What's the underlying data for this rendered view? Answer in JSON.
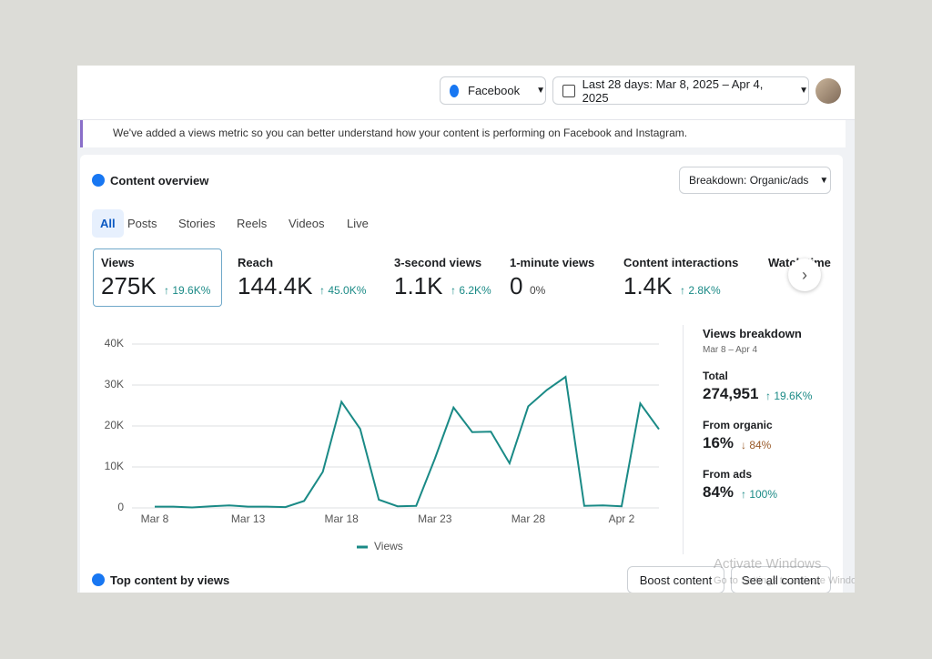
{
  "header": {
    "platform": "Facebook",
    "date_range": "Last 28 days: Mar 8, 2025 – Apr 4, 2025"
  },
  "notice": "We've added a views metric so you can better understand how your content is performing on Facebook and Instagram.",
  "overview": {
    "title": "Content overview",
    "breakdown": "Breakdown: Organic/ads",
    "tabs": [
      "All",
      "Posts",
      "Stories",
      "Reels",
      "Videos",
      "Live"
    ],
    "metrics": [
      {
        "label": "Views",
        "value": "275K",
        "change": "↑ 19.6K%"
      },
      {
        "label": "Reach",
        "value": "144.4K",
        "change": "↑ 45.0K%"
      },
      {
        "label": "3-second views",
        "value": "1.1K",
        "change": "↑ 6.2K%"
      },
      {
        "label": "1-minute views",
        "value": "0",
        "change": "0%"
      },
      {
        "label": "Content interactions",
        "value": "1.4K",
        "change": "↑ 2.8K%"
      },
      {
        "label": "Watch time"
      }
    ]
  },
  "chart_data": {
    "type": "line",
    "categories": [
      "Mar 8",
      null,
      null,
      null,
      null,
      "Mar 13",
      null,
      null,
      null,
      null,
      "Mar 18",
      null,
      null,
      null,
      null,
      "Mar 23",
      null,
      null,
      null,
      null,
      "Mar 28",
      null,
      null,
      null,
      null,
      "Apr 2",
      null,
      null
    ],
    "series": [
      {
        "name": "Views",
        "color": "#1a8a86",
        "values": [
          300,
          300,
          100,
          400,
          600,
          300,
          300,
          200,
          1700,
          8800,
          25900,
          19300,
          2000,
          400,
          500,
          12000,
          24500,
          18500,
          18600,
          10900,
          24800,
          28800,
          32000,
          500,
          600,
          400,
          25500,
          19200
        ]
      }
    ],
    "ylim": [
      0,
      40000
    ],
    "yticks": [
      0,
      {
        "value": 10000,
        "label": "10K"
      },
      {
        "value": 20000,
        "label": "20K"
      },
      {
        "value": 30000,
        "label": "30K"
      },
      {
        "value": 40000,
        "label": "40K"
      }
    ],
    "grid": true
  },
  "breakdown_panel": {
    "title": "Views breakdown",
    "period": "Mar 8 – Apr 4",
    "items": [
      {
        "label": "Total",
        "value": "274,951",
        "change": "↑ 19.6K%"
      },
      {
        "label": "From organic",
        "value": "16%",
        "change": "↓ 84%"
      },
      {
        "label": "From ads",
        "value": "84%",
        "change": "↑ 100%"
      }
    ]
  },
  "footer": {
    "title": "Top content by views",
    "buttons": [
      "Boost content",
      "See all content"
    ]
  },
  "watermark": {
    "title": "Activate Windows",
    "subtitle": "Go to Settings to activate Windows."
  }
}
